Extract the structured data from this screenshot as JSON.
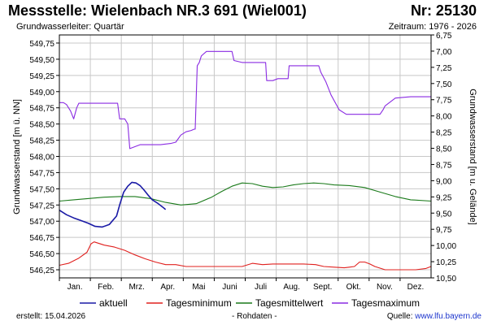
{
  "header": {
    "title": "Messstelle: Wielenbach NR.3 691 (Wiel001)",
    "nr": "Nr: 25130",
    "aquifer": "Grundwasserleiter: Quartär",
    "period": "Zeitraum: 1976 - 2026"
  },
  "footer": {
    "created_label": "erstellt:",
    "created_date": "15.04.2026",
    "raw": "- Rohdaten -",
    "source_label": "Quelle:",
    "source_url": "www.lfu.bayern.de"
  },
  "colors": {
    "aktuell": "#1a1aa6",
    "min": "#e0201e",
    "mittel": "#1a7a1a",
    "max": "#8a2be2",
    "grid": "#c8c8c8"
  },
  "chart_data": {
    "type": "line",
    "xlabel": "",
    "ylabel_left": "Grundwasserstand [m ü. NN]",
    "ylabel_right": "Grundwasserstand [m u. Gelände]",
    "ylim_left": [
      546.125,
      549.875
    ],
    "ylim_right": [
      10.5,
      6.75
    ],
    "yticks_left": [
      "546,25",
      "546,50",
      "546,75",
      "547,00",
      "547,25",
      "547,50",
      "547,75",
      "548,00",
      "548,25",
      "548,50",
      "548,75",
      "549,00",
      "549,25",
      "549,50",
      "549,75"
    ],
    "yticks_right": [
      "6,75",
      "7,00",
      "7,25",
      "7,50",
      "7,75",
      "8,00",
      "8,25",
      "8,50",
      "8,75",
      "9,00",
      "9,25",
      "9,50",
      "9,75",
      "10,00",
      "10,25",
      "10,50"
    ],
    "months": [
      "Jan.",
      "Feb.",
      "Mrz.",
      "Apr.",
      "Mai",
      "Juni",
      "Juli",
      "Aug.",
      "Sept.",
      "Okt.",
      "Nov.",
      "Dez."
    ],
    "grid": true,
    "legend_position": "bottom",
    "series": [
      {
        "name": "aktuell",
        "color_key": "aktuell",
        "x": [
          1,
          8,
          15,
          22,
          29,
          36,
          43,
          50,
          57,
          60,
          64,
          68,
          72,
          76,
          80,
          84,
          88,
          92,
          97,
          102,
          105
        ],
        "y": [
          547.17,
          547.1,
          547.05,
          547.01,
          546.97,
          546.92,
          546.91,
          546.95,
          547.08,
          547.25,
          547.45,
          547.54,
          547.6,
          547.59,
          547.55,
          547.48,
          547.4,
          547.33,
          547.28,
          547.22,
          547.18
        ]
      },
      {
        "name": "Tagesminimum",
        "color_key": "min",
        "x": [
          1,
          10,
          20,
          28,
          32,
          35,
          45,
          55,
          65,
          75,
          85,
          95,
          105,
          115,
          125,
          135,
          150,
          165,
          180,
          190,
          200,
          210,
          225,
          240,
          252,
          260,
          270,
          280,
          285,
          290,
          295,
          300,
          305,
          310,
          320,
          330,
          340,
          350,
          360,
          365
        ],
        "y": [
          546.32,
          546.35,
          546.43,
          546.52,
          546.65,
          546.68,
          546.63,
          546.6,
          546.55,
          546.48,
          546.42,
          546.37,
          546.33,
          546.33,
          546.3,
          546.3,
          546.3,
          546.3,
          546.3,
          546.35,
          546.33,
          546.34,
          546.34,
          546.34,
          546.33,
          546.3,
          546.29,
          546.28,
          546.29,
          546.3,
          546.37,
          546.37,
          546.34,
          546.3,
          546.25,
          546.25,
          546.25,
          546.25,
          546.27,
          546.3
        ]
      },
      {
        "name": "Tagesmittelwert",
        "color_key": "mittel",
        "x": [
          1,
          15,
          30,
          45,
          60,
          75,
          90,
          105,
          120,
          135,
          150,
          160,
          170,
          180,
          190,
          200,
          210,
          220,
          230,
          240,
          250,
          260,
          270,
          285,
          300,
          315,
          330,
          345,
          365
        ],
        "y": [
          547.31,
          547.33,
          547.35,
          547.37,
          547.38,
          547.38,
          547.35,
          547.29,
          547.25,
          547.27,
          547.37,
          547.46,
          547.54,
          547.59,
          547.58,
          547.54,
          547.52,
          547.53,
          547.56,
          547.58,
          547.59,
          547.58,
          547.56,
          547.55,
          547.52,
          547.45,
          547.38,
          547.33,
          547.31
        ]
      },
      {
        "name": "Tagesmaximum",
        "color_key": "max",
        "x": [
          1,
          5,
          8,
          10,
          12,
          14,
          15,
          18,
          20,
          22,
          30,
          45,
          58,
          60,
          62,
          65,
          68,
          70,
          75,
          80,
          85,
          90,
          100,
          110,
          115,
          120,
          125,
          130,
          133,
          134,
          136,
          138,
          140,
          145,
          150,
          165,
          170,
          172,
          180,
          190,
          195,
          203,
          204,
          210,
          215,
          220,
          225,
          226,
          240,
          250,
          255,
          257,
          262,
          267,
          275,
          282,
          284,
          286,
          290,
          310,
          315,
          318,
          320,
          330,
          345,
          365
        ],
        "y": [
          548.83,
          548.83,
          548.8,
          548.75,
          548.7,
          548.62,
          548.58,
          548.75,
          548.82,
          548.82,
          548.82,
          548.82,
          548.82,
          548.58,
          548.58,
          548.58,
          548.5,
          548.12,
          548.15,
          548.18,
          548.18,
          548.18,
          548.18,
          548.2,
          548.22,
          548.33,
          548.38,
          548.4,
          548.42,
          548.42,
          549.4,
          549.45,
          549.55,
          549.62,
          549.62,
          549.62,
          549.62,
          549.48,
          549.45,
          549.45,
          549.45,
          549.45,
          549.17,
          549.17,
          549.2,
          549.2,
          549.2,
          549.4,
          549.4,
          549.4,
          549.4,
          549.3,
          549.15,
          548.95,
          548.72,
          548.65,
          548.65,
          548.65,
          548.65,
          548.65,
          548.65,
          548.72,
          548.78,
          548.9,
          548.92,
          548.92
        ]
      }
    ]
  }
}
